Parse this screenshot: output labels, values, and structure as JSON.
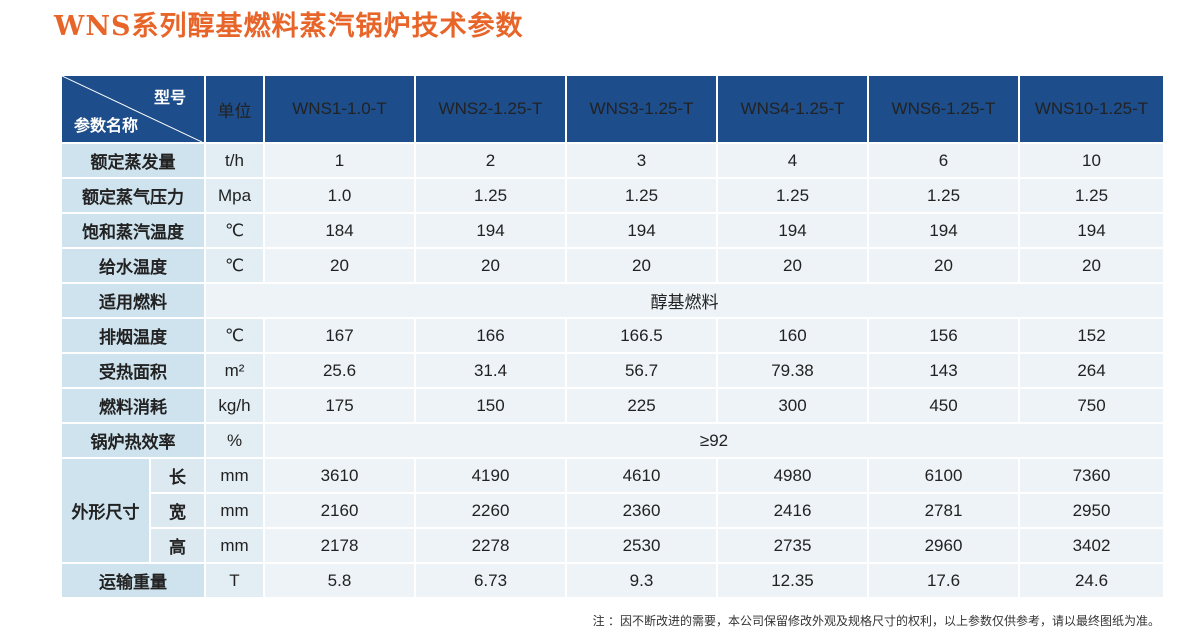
{
  "title": "WNS系列醇基燃料蒸汽锅炉技术参数",
  "header": {
    "model_label": "型号",
    "param_label": "参数名称",
    "unit_label": "单位",
    "models": [
      "WNS1-1.0-T",
      "WNS2-1.25-T",
      "WNS3-1.25-T",
      "WNS4-1.25-T",
      "WNS6-1.25-T",
      "WNS10-1.25-T"
    ]
  },
  "rows": [
    {
      "name": "额定蒸发量",
      "unit": "t/h",
      "values": [
        "1",
        "2",
        "3",
        "4",
        "6",
        "10"
      ]
    },
    {
      "name": "额定蒸气压力",
      "unit": "Mpa",
      "values": [
        "1.0",
        "1.25",
        "1.25",
        "1.25",
        "1.25",
        "1.25"
      ]
    },
    {
      "name": "饱和蒸汽温度",
      "unit": "℃",
      "values": [
        "184",
        "194",
        "194",
        "194",
        "194",
        "194"
      ]
    },
    {
      "name": "给水温度",
      "unit": "℃",
      "values": [
        "20",
        "20",
        "20",
        "20",
        "20",
        "20"
      ]
    },
    {
      "name": "适用燃料",
      "span_value": "醇基燃料"
    },
    {
      "name": "排烟温度",
      "unit": "℃",
      "values": [
        "167",
        "166",
        "166.5",
        "160",
        "156",
        "152"
      ]
    },
    {
      "name": "受热面积",
      "unit": "m²",
      "values": [
        "25.6",
        "31.4",
        "56.7",
        "79.38",
        "143",
        "264"
      ]
    },
    {
      "name": "燃料消耗",
      "unit": "kg/h",
      "values": [
        "175",
        "150",
        "225",
        "300",
        "450",
        "750"
      ]
    },
    {
      "name": "锅炉热效率",
      "unit": "%",
      "span_value": "≥92"
    }
  ],
  "dims": {
    "group_label": "外形尺寸",
    "sub": [
      {
        "label": "长",
        "unit": "mm",
        "values": [
          "3610",
          "4190",
          "4610",
          "4980",
          "6100",
          "7360"
        ]
      },
      {
        "label": "宽",
        "unit": "mm",
        "values": [
          "2160",
          "2260",
          "2360",
          "2416",
          "2781",
          "2950"
        ]
      },
      {
        "label": "高",
        "unit": "mm",
        "values": [
          "2178",
          "2278",
          "2530",
          "2735",
          "2960",
          "3402"
        ]
      }
    ]
  },
  "transport": {
    "name": "运输重量",
    "unit": "T",
    "values": [
      "5.8",
      "6.73",
      "9.3",
      "12.35",
      "17.6",
      "24.6"
    ]
  },
  "note": "注 ：因不断改进的需要，本公司保留修改外观及规格尺寸的权利，以上参数仅供参考，请以最终图纸为准。"
}
